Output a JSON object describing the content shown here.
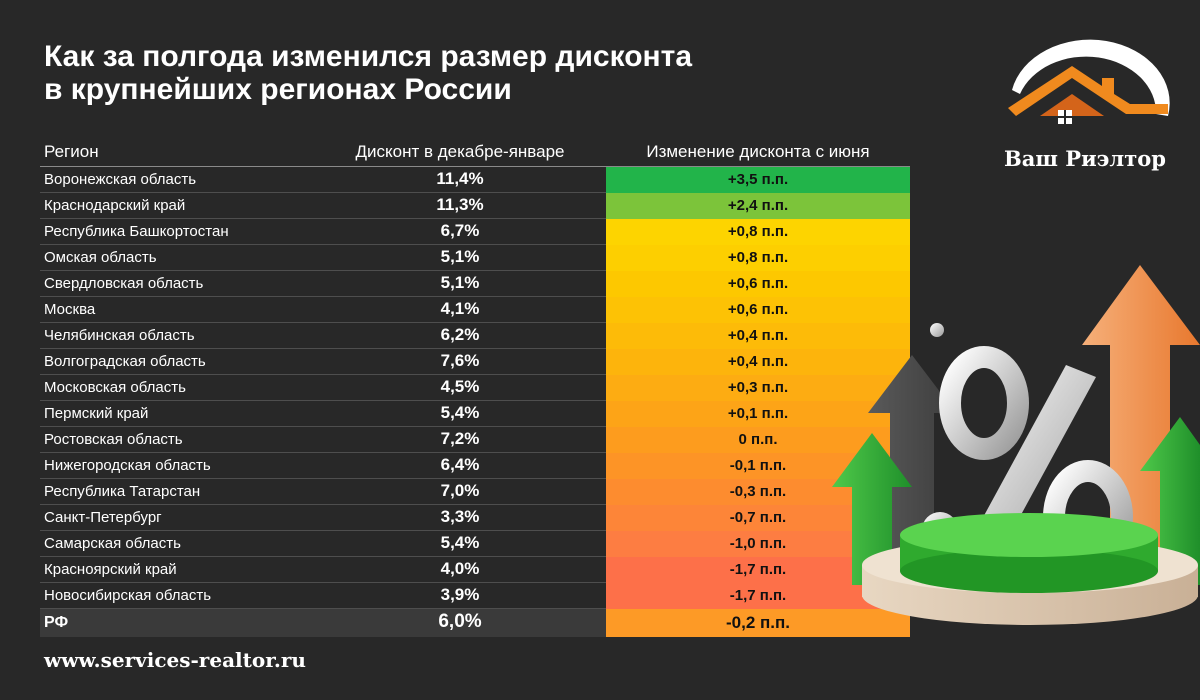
{
  "title": {
    "line1": "Как за полгода изменился размер дисконта",
    "line2": "в крупнейших регионах России"
  },
  "logo": {
    "text": "Ваш Риэлтор"
  },
  "footer": {
    "url": "www.services-realtor.ru"
  },
  "chart_data": {
    "type": "table",
    "columns": [
      "Регион",
      "Дисконт в декабре-январе",
      "Изменение дисконта с июня"
    ],
    "rows": [
      {
        "region": "Воронежская область",
        "discount": "11,4%",
        "change": "+3,5 п.п.",
        "color": "#22b44a"
      },
      {
        "region": "Краснодарский край",
        "discount": "11,3%",
        "change": "+2,4 п.п.",
        "color": "#7cc43a"
      },
      {
        "region": "Республика Башкортостан",
        "discount": "6,7%",
        "change": "+0,8 п.п.",
        "color": "#fdd400"
      },
      {
        "region": "Омская область",
        "discount": "5,1%",
        "change": "+0,8 п.п.",
        "color": "#fdcf00"
      },
      {
        "region": "Свердловская область",
        "discount": "5,1%",
        "change": "+0,6 п.п.",
        "color": "#fdc800"
      },
      {
        "region": "Москва",
        "discount": "4,1%",
        "change": "+0,6 п.п.",
        "color": "#fdc205"
      },
      {
        "region": "Челябинская область",
        "discount": "6,2%",
        "change": "+0,4 п.п.",
        "color": "#fdbb08"
      },
      {
        "region": "Волгоградская область",
        "discount": "7,6%",
        "change": "+0,4 п.п.",
        "color": "#fdb40c"
      },
      {
        "region": "Московская область",
        "discount": "4,5%",
        "change": "+0,3 п.п.",
        "color": "#fdac12"
      },
      {
        "region": "Пермский край",
        "discount": "5,4%",
        "change": "+0,1 п.п.",
        "color": "#fda417"
      },
      {
        "region": "Ростовская область",
        "discount": "7,2%",
        "change": "0 п.п.",
        "color": "#fd9c1e"
      },
      {
        "region": "Нижегородская область",
        "discount": "6,4%",
        "change": "-0,1 п.п.",
        "color": "#fd9426"
      },
      {
        "region": "Республика Татарстан",
        "discount": "7,0%",
        "change": "-0,3 п.п.",
        "color": "#fd8c2f"
      },
      {
        "region": "Санкт-Петербург",
        "discount": "3,3%",
        "change": "-0,7 п.п.",
        "color": "#fd8538"
      },
      {
        "region": "Самарская область",
        "discount": "5,4%",
        "change": "-1,0 п.п.",
        "color": "#fd7d42"
      },
      {
        "region": "Красноярский край",
        "discount": "4,0%",
        "change": "-1,7 п.п.",
        "color": "#fd7049"
      },
      {
        "region": "Новосибирская область",
        "discount": "3,9%",
        "change": "-1,7 п.п.",
        "color": "#fd7049"
      }
    ],
    "total": {
      "region": "РФ",
      "discount": "6,0%",
      "change": "-0,2 п.п.",
      "color": "#fd9a26"
    }
  }
}
